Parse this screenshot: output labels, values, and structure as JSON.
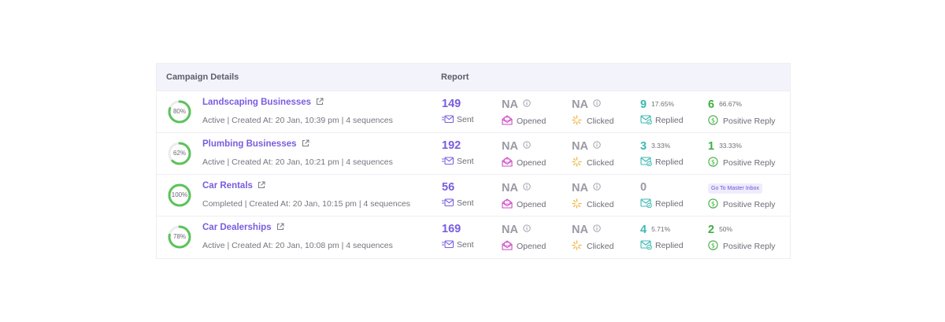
{
  "header": {
    "campaign_details": "Campaign Details",
    "report": "Report"
  },
  "labels": {
    "sent": "Sent",
    "opened": "Opened",
    "clicked": "Clicked",
    "replied": "Replied",
    "positive_reply": "Positive Reply"
  },
  "colors": {
    "accent": "#7a5ce0",
    "replied": "#3ab9b0",
    "positive": "#3fae3f",
    "clicked": "#f0b43a",
    "opened": "#cc47c3",
    "ring": "#5cc25c"
  },
  "campaigns": [
    {
      "name": "Landscaping Businesses",
      "meta": "Active | Created At: 20 Jan, 10:39 pm | 4 sequences",
      "progress_label": "80%",
      "progress": 0.8,
      "sent": "149",
      "opened": "NA",
      "clicked": "NA",
      "replied": "9",
      "replied_pct": "17.65%",
      "positive": "6",
      "positive_pct": "66.67%"
    },
    {
      "name": "Plumbing Businesses",
      "meta": "Active | Created At: 20 Jan, 10:21 pm | 4 sequences",
      "progress_label": "62%",
      "progress": 0.62,
      "sent": "192",
      "opened": "NA",
      "clicked": "NA",
      "replied": "3",
      "replied_pct": "3.33%",
      "positive": "1",
      "positive_pct": "33.33%"
    },
    {
      "name": "Car Rentals",
      "meta": "Completed | Created At: 20 Jan, 10:15 pm | 4 sequences",
      "progress_label": "100%",
      "progress": 1.0,
      "sent": "56",
      "opened": "NA",
      "clicked": "NA",
      "replied": "0",
      "master_inbox": "Go To Master Inbox"
    },
    {
      "name": "Car Dealerships",
      "meta": "Active | Created At: 20 Jan, 10:08 pm | 4 sequences",
      "progress_label": "78%",
      "progress": 0.78,
      "sent": "169",
      "opened": "NA",
      "clicked": "NA",
      "replied": "4",
      "replied_pct": "5.71%",
      "positive": "2",
      "positive_pct": "50%"
    }
  ]
}
